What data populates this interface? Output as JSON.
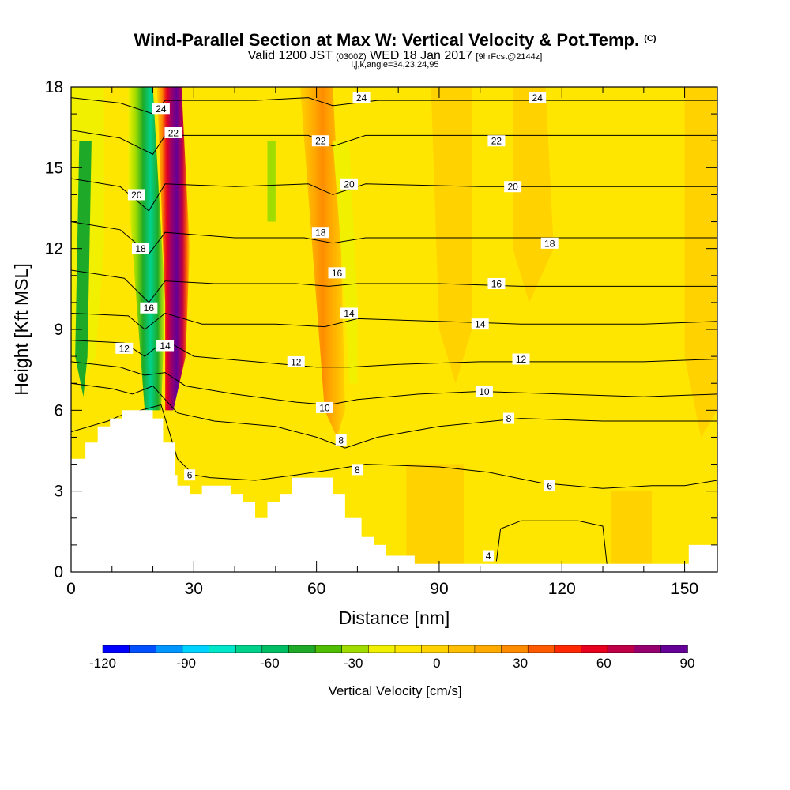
{
  "titles": {
    "main": "Wind-Parallel Section at Max W: Vertical Velocity & Pot.Temp.",
    "main_mark": "(C)",
    "valid_a": "Valid 1200 JST",
    "valid_b": "(0300Z)",
    "valid_c": "WED 18 Jan 2017",
    "valid_d": "[9hrFcst@2144z]",
    "line3": "i,j,k,angle=34,23,24,95"
  },
  "chart_data": {
    "type": "heatmap",
    "xlabel": "Distance [nm]",
    "ylabel": "Height [Kft MSL]",
    "xlim": [
      0,
      158
    ],
    "ylim": [
      0,
      18
    ],
    "xticks": [
      0,
      30,
      60,
      90,
      120,
      150
    ],
    "yticks": [
      0,
      3,
      6,
      9,
      12,
      15,
      18
    ],
    "colorbar": {
      "label": "Vertical Velocity [cm/s]",
      "range": [
        -120,
        90
      ],
      "ticks": [
        -120,
        -90,
        -60,
        -30,
        0,
        30,
        60,
        90
      ],
      "colors": [
        "#0000ff",
        "#0050ff",
        "#0096ff",
        "#00d2ff",
        "#00e6c8",
        "#00d28c",
        "#00be64",
        "#1eaa28",
        "#50be00",
        "#a0dc00",
        "#f0f000",
        "#ffe600",
        "#ffd200",
        "#ffbe00",
        "#ffaa00",
        "#ff8c00",
        "#ff5a00",
        "#ff2800",
        "#e6001e",
        "#be0046",
        "#96006e",
        "#640096"
      ]
    },
    "terrain_kft": [
      [
        0,
        4.2
      ],
      [
        3.5,
        4.2
      ],
      [
        3.5,
        4.8
      ],
      [
        6.5,
        4.8
      ],
      [
        6.5,
        5.4
      ],
      [
        9.5,
        5.4
      ],
      [
        9.5,
        5.7
      ],
      [
        12.5,
        5.7
      ],
      [
        12.5,
        6.0
      ],
      [
        20,
        6.0
      ],
      [
        20,
        5.7
      ],
      [
        22.5,
        5.7
      ],
      [
        22.5,
        4.8
      ],
      [
        25.5,
        4.8
      ],
      [
        25.5,
        3.6
      ],
      [
        26,
        3.6
      ],
      [
        26,
        3.2
      ],
      [
        29,
        3.2
      ],
      [
        29,
        2.9
      ],
      [
        32,
        2.9
      ],
      [
        32,
        3.2
      ],
      [
        39,
        3.2
      ],
      [
        39,
        2.9
      ],
      [
        42,
        2.9
      ],
      [
        42,
        2.6
      ],
      [
        45,
        2.6
      ],
      [
        45,
        2.0
      ],
      [
        48,
        2.0
      ],
      [
        48,
        2.6
      ],
      [
        51,
        2.6
      ],
      [
        51,
        2.9
      ],
      [
        54,
        2.9
      ],
      [
        54,
        3.5
      ],
      [
        64,
        3.5
      ],
      [
        64,
        2.9
      ],
      [
        67,
        2.9
      ],
      [
        67,
        2.0
      ],
      [
        71,
        2.0
      ],
      [
        71,
        1.3
      ],
      [
        74,
        1.3
      ],
      [
        74,
        1.0
      ],
      [
        77,
        1.0
      ],
      [
        77,
        0.6
      ],
      [
        84,
        0.6
      ],
      [
        84,
        0.3
      ],
      [
        151,
        0.3
      ],
      [
        151,
        1.0
      ],
      [
        158,
        1.0
      ]
    ],
    "theta_contours": [
      {
        "label": "4",
        "points": [
          [
            104,
            0.4
          ],
          [
            105,
            1.6
          ],
          [
            110,
            1.9
          ],
          [
            124,
            1.9
          ],
          [
            130,
            1.7
          ],
          [
            131,
            0.3
          ]
        ]
      },
      {
        "label": "6",
        "points": [
          [
            0,
            5.2
          ],
          [
            9,
            5.6
          ],
          [
            12,
            5.8
          ],
          [
            22,
            6.2
          ],
          [
            26,
            4.2
          ],
          [
            30,
            3.6
          ],
          [
            34,
            3.5
          ],
          [
            45,
            3.4
          ],
          [
            55,
            3.6
          ],
          [
            64,
            3.8
          ],
          [
            72,
            4.0
          ],
          [
            90,
            3.9
          ],
          [
            102,
            3.7
          ],
          [
            115,
            3.3
          ],
          [
            130,
            3.1
          ],
          [
            142,
            3.2
          ],
          [
            150,
            3.2
          ],
          [
            158,
            3.4
          ]
        ]
      },
      {
        "label": "8",
        "points": [
          [
            0,
            7.0
          ],
          [
            10,
            6.8
          ],
          [
            15,
            6.6
          ],
          [
            20,
            6.9
          ],
          [
            26,
            5.9
          ],
          [
            35,
            5.6
          ],
          [
            50,
            5.4
          ],
          [
            60,
            5.0
          ],
          [
            67,
            4.6
          ],
          [
            75,
            5.0
          ],
          [
            90,
            5.4
          ],
          [
            110,
            5.7
          ],
          [
            130,
            5.6
          ],
          [
            158,
            5.6
          ]
        ]
      },
      {
        "label": "10",
        "points": [
          [
            0,
            7.8
          ],
          [
            12,
            7.6
          ],
          [
            18,
            7.3
          ],
          [
            23,
            7.4
          ],
          [
            28,
            6.9
          ],
          [
            40,
            6.6
          ],
          [
            55,
            6.3
          ],
          [
            63,
            6.2
          ],
          [
            70,
            6.4
          ],
          [
            85,
            6.6
          ],
          [
            100,
            6.7
          ],
          [
            120,
            6.6
          ],
          [
            140,
            6.5
          ],
          [
            158,
            6.6
          ]
        ]
      },
      {
        "label": "12",
        "points": [
          [
            0,
            8.6
          ],
          [
            13,
            8.5
          ],
          [
            18,
            8.0
          ],
          [
            23,
            8.6
          ],
          [
            30,
            8.0
          ],
          [
            45,
            7.8
          ],
          [
            60,
            7.6
          ],
          [
            68,
            7.6
          ],
          [
            80,
            7.7
          ],
          [
            100,
            7.8
          ],
          [
            120,
            7.8
          ],
          [
            140,
            7.8
          ],
          [
            158,
            7.9
          ]
        ]
      },
      {
        "label": "14",
        "points": [
          [
            0,
            9.6
          ],
          [
            14,
            9.5
          ],
          [
            18,
            9.0
          ],
          [
            23,
            9.6
          ],
          [
            32,
            9.2
          ],
          [
            50,
            9.2
          ],
          [
            62,
            9.1
          ],
          [
            70,
            9.4
          ],
          [
            90,
            9.3
          ],
          [
            110,
            9.2
          ],
          [
            140,
            9.2
          ],
          [
            158,
            9.3
          ]
        ]
      },
      {
        "label": "16",
        "points": [
          [
            0,
            11.2
          ],
          [
            13,
            10.9
          ],
          [
            19,
            10.0
          ],
          [
            23,
            10.8
          ],
          [
            35,
            10.7
          ],
          [
            55,
            10.7
          ],
          [
            63,
            10.6
          ],
          [
            70,
            10.7
          ],
          [
            90,
            10.7
          ],
          [
            110,
            10.6
          ],
          [
            140,
            10.6
          ],
          [
            158,
            10.6
          ]
        ]
      },
      {
        "label": "18",
        "points": [
          [
            0,
            13.0
          ],
          [
            12,
            12.7
          ],
          [
            19,
            11.8
          ],
          [
            23,
            12.6
          ],
          [
            40,
            12.4
          ],
          [
            57,
            12.4
          ],
          [
            64,
            12.2
          ],
          [
            72,
            12.4
          ],
          [
            100,
            12.4
          ],
          [
            130,
            12.4
          ],
          [
            158,
            12.4
          ]
        ]
      },
      {
        "label": "20",
        "points": [
          [
            0,
            14.6
          ],
          [
            12,
            14.3
          ],
          [
            19,
            13.4
          ],
          [
            23,
            14.4
          ],
          [
            40,
            14.3
          ],
          [
            58,
            14.4
          ],
          [
            64,
            14.0
          ],
          [
            72,
            14.4
          ],
          [
            100,
            14.3
          ],
          [
            130,
            14.3
          ],
          [
            158,
            14.3
          ]
        ]
      },
      {
        "label": "22",
        "points": [
          [
            0,
            16.4
          ],
          [
            12,
            16.1
          ],
          [
            20,
            15.5
          ],
          [
            23,
            16.2
          ],
          [
            40,
            16.2
          ],
          [
            58,
            16.2
          ],
          [
            64,
            15.8
          ],
          [
            72,
            16.2
          ],
          [
            100,
            16.2
          ],
          [
            130,
            16.2
          ],
          [
            158,
            16.2
          ]
        ]
      },
      {
        "label": "24",
        "points": [
          [
            0,
            17.6
          ],
          [
            12,
            17.4
          ],
          [
            20,
            17.0
          ],
          [
            23,
            17.5
          ],
          [
            45,
            17.5
          ],
          [
            58,
            17.6
          ],
          [
            64,
            17.3
          ],
          [
            75,
            17.5
          ],
          [
            100,
            17.5
          ],
          [
            130,
            17.5
          ],
          [
            158,
            17.5
          ]
        ]
      }
    ],
    "contour_label_positions": [
      {
        "text": "24",
        "x": 22,
        "y": 17.2
      },
      {
        "text": "22",
        "x": 25,
        "y": 16.3
      },
      {
        "text": "20",
        "x": 16,
        "y": 14.0
      },
      {
        "text": "18",
        "x": 17,
        "y": 12.0
      },
      {
        "text": "16",
        "x": 19,
        "y": 9.8
      },
      {
        "text": "14",
        "x": 23,
        "y": 8.4
      },
      {
        "text": "12",
        "x": 13,
        "y": 8.3
      },
      {
        "text": "6",
        "x": 29,
        "y": 3.6
      },
      {
        "text": "24",
        "x": 71,
        "y": 17.6
      },
      {
        "text": "22",
        "x": 61,
        "y": 16.0
      },
      {
        "text": "20",
        "x": 68,
        "y": 14.4
      },
      {
        "text": "18",
        "x": 61,
        "y": 12.6
      },
      {
        "text": "16",
        "x": 65,
        "y": 11.1
      },
      {
        "text": "14",
        "x": 68,
        "y": 9.6
      },
      {
        "text": "12",
        "x": 55,
        "y": 7.8
      },
      {
        "text": "10",
        "x": 62,
        "y": 6.1
      },
      {
        "text": "8",
        "x": 66,
        "y": 4.9
      },
      {
        "text": "8",
        "x": 70,
        "y": 3.8
      },
      {
        "text": "24",
        "x": 114,
        "y": 17.6
      },
      {
        "text": "22",
        "x": 104,
        "y": 16.0
      },
      {
        "text": "20",
        "x": 108,
        "y": 14.3
      },
      {
        "text": "18",
        "x": 117,
        "y": 12.2
      },
      {
        "text": "16",
        "x": 104,
        "y": 10.7
      },
      {
        "text": "14",
        "x": 100,
        "y": 9.2
      },
      {
        "text": "12",
        "x": 110,
        "y": 7.9
      },
      {
        "text": "10",
        "x": 101,
        "y": 6.7
      },
      {
        "text": "8",
        "x": 107,
        "y": 5.7
      },
      {
        "text": "6",
        "x": 117,
        "y": 3.2
      },
      {
        "text": "4",
        "x": 102,
        "y": 0.6
      }
    ]
  }
}
